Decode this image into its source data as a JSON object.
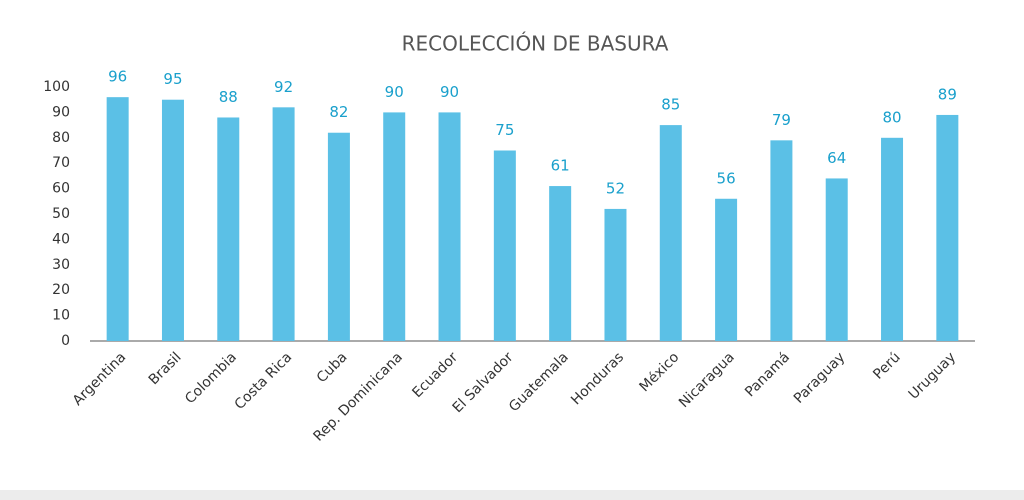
{
  "chart_data": {
    "type": "bar",
    "title": "RECOLECCIÓN DE BASURA",
    "categories": [
      "Argentina",
      "Brasil",
      "Colombia",
      "Costa Rica",
      "Cuba",
      "Rep. Dominicana",
      "Ecuador",
      "El Salvador",
      "Guatemala",
      "Honduras",
      "México",
      "Nicaragua",
      "Panamá",
      "Paraguay",
      "Perú",
      "Uruguay"
    ],
    "values": [
      96,
      95,
      88,
      92,
      82,
      90,
      90,
      75,
      61,
      52,
      85,
      56,
      79,
      64,
      80,
      89
    ],
    "color": "#5bc0e6",
    "label_color": "#1aa0cc",
    "ylim": [
      0,
      100
    ],
    "yticks": [
      0,
      10,
      20,
      30,
      40,
      50,
      60,
      70,
      80,
      90,
      100
    ],
    "grid": false
  }
}
